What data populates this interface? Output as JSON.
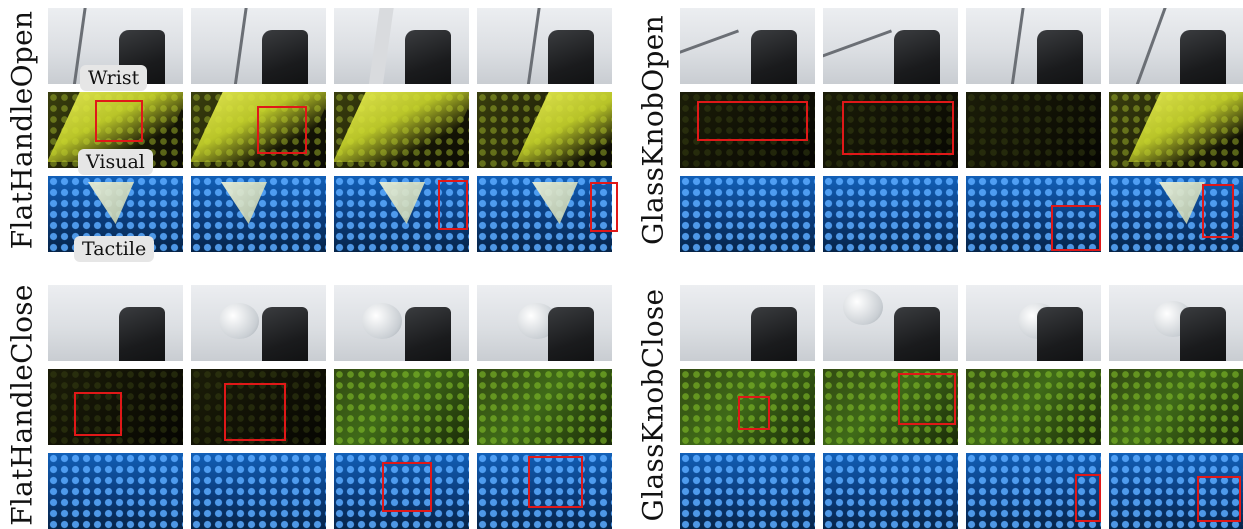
{
  "panels": [
    {
      "task": "FlatHandleOpen"
    },
    {
      "task": "GlassKnobOpen"
    },
    {
      "task": "FlatHandleClose"
    },
    {
      "task": "GlassKnobClose"
    }
  ],
  "row_labels": {
    "wrist": "Wrist",
    "visual": "Visual",
    "tactile": "Tactile"
  },
  "colors": {
    "highlight_box": "#e01818",
    "tactile_blue": "#1260b8",
    "visual_yellow": "#c9d62c"
  }
}
